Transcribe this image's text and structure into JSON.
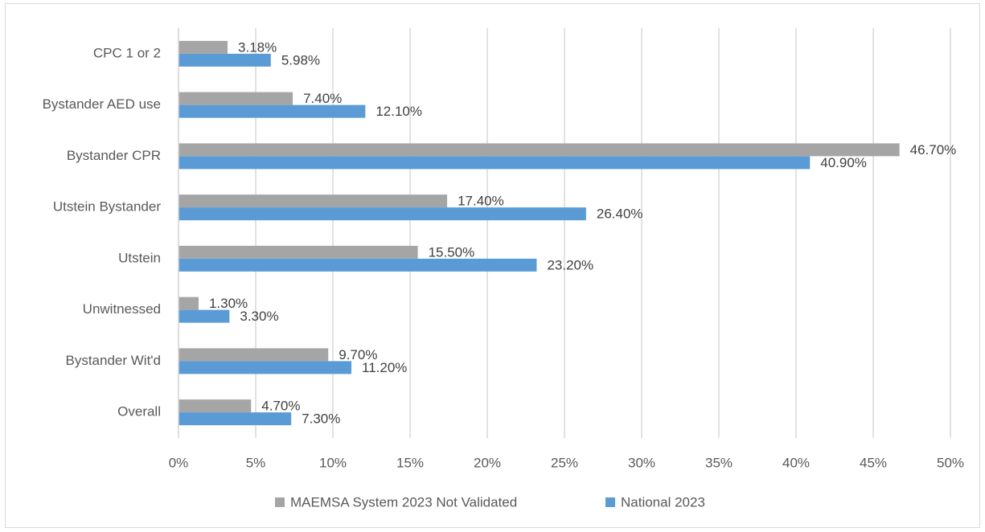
{
  "chart_data": {
    "type": "bar",
    "orientation": "horizontal",
    "categories": [
      "CPC 1 or 2",
      "Bystander AED use",
      "Bystander CPR",
      "Utstein Bystander",
      "Utstein",
      "Unwitnessed",
      "Bystander Wit'd",
      "Overall"
    ],
    "series": [
      {
        "name": "MAEMSA System 2023 Not Validated",
        "color": "#a5a5a5",
        "values": [
          3.18,
          7.4,
          46.7,
          17.4,
          15.5,
          1.3,
          9.7,
          4.7
        ],
        "value_labels": [
          "3.18%",
          "7.40%",
          "46.70%",
          "17.40%",
          "15.50%",
          "1.30%",
          "9.70%",
          "4.70%"
        ]
      },
      {
        "name": "National 2023",
        "color": "#5b9bd5",
        "values": [
          5.98,
          12.1,
          40.9,
          26.4,
          23.2,
          3.3,
          11.2,
          7.3
        ],
        "value_labels": [
          "5.98%",
          "12.10%",
          "40.90%",
          "26.40%",
          "23.20%",
          "3.30%",
          "11.20%",
          "7.30%"
        ]
      }
    ],
    "xlim": [
      0,
      50
    ],
    "xticks": [
      {
        "value": 0,
        "label": "0%"
      },
      {
        "value": 5,
        "label": "5%"
      },
      {
        "value": 10,
        "label": "10%"
      },
      {
        "value": 15,
        "label": "15%"
      },
      {
        "value": 20,
        "label": "20%"
      },
      {
        "value": 25,
        "label": "25%"
      },
      {
        "value": 30,
        "label": "30%"
      },
      {
        "value": 35,
        "label": "35%"
      },
      {
        "value": 40,
        "label": "40%"
      },
      {
        "value": 45,
        "label": "45%"
      },
      {
        "value": 50,
        "label": "50%"
      }
    ],
    "grid": true,
    "legend": "bottom"
  }
}
